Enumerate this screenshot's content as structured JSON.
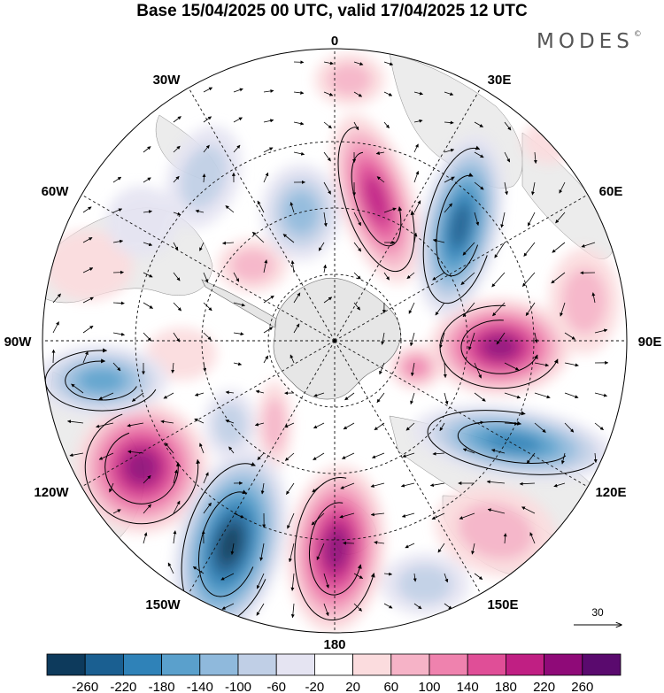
{
  "title": "Base 15/04/2025 00 UTC, valid 17/04/2025 12 UTC",
  "logo": {
    "text": "MODES",
    "mark": "©"
  },
  "map": {
    "projection": "south-polar-stereographic",
    "longitude_labels": [
      {
        "id": "lon-0",
        "text": "0"
      },
      {
        "id": "lon-30e",
        "text": "30E"
      },
      {
        "id": "lon-60e",
        "text": "60E"
      },
      {
        "id": "lon-90e",
        "text": "90E"
      },
      {
        "id": "lon-120e",
        "text": "120E"
      },
      {
        "id": "lon-150e",
        "text": "150E"
      },
      {
        "id": "lon-180",
        "text": "180"
      },
      {
        "id": "lon-150w",
        "text": "150W"
      },
      {
        "id": "lon-120w",
        "text": "120W"
      },
      {
        "id": "lon-90w",
        "text": "90W"
      },
      {
        "id": "lon-60w",
        "text": "60W"
      },
      {
        "id": "lon-30w",
        "text": "30W"
      }
    ],
    "land_color": "#e8e8e8",
    "vector_reference": {
      "value": "30"
    }
  },
  "colorbar": {
    "colors": [
      "#0d3a5c",
      "#1a5f91",
      "#2f82b8",
      "#5aa0cc",
      "#8fb9dc",
      "#c0cfe6",
      "#e5e4f2",
      "#ffffff",
      "#fbdcde",
      "#f6b3c7",
      "#ef82ae",
      "#e04e97",
      "#c01f83",
      "#8f0a78",
      "#5a0a6e"
    ],
    "labels": [
      "-260",
      "-220",
      "-180",
      "-140",
      "-100",
      "-60",
      "-20",
      "20",
      "60",
      "100",
      "140",
      "180",
      "220",
      "260"
    ]
  }
}
